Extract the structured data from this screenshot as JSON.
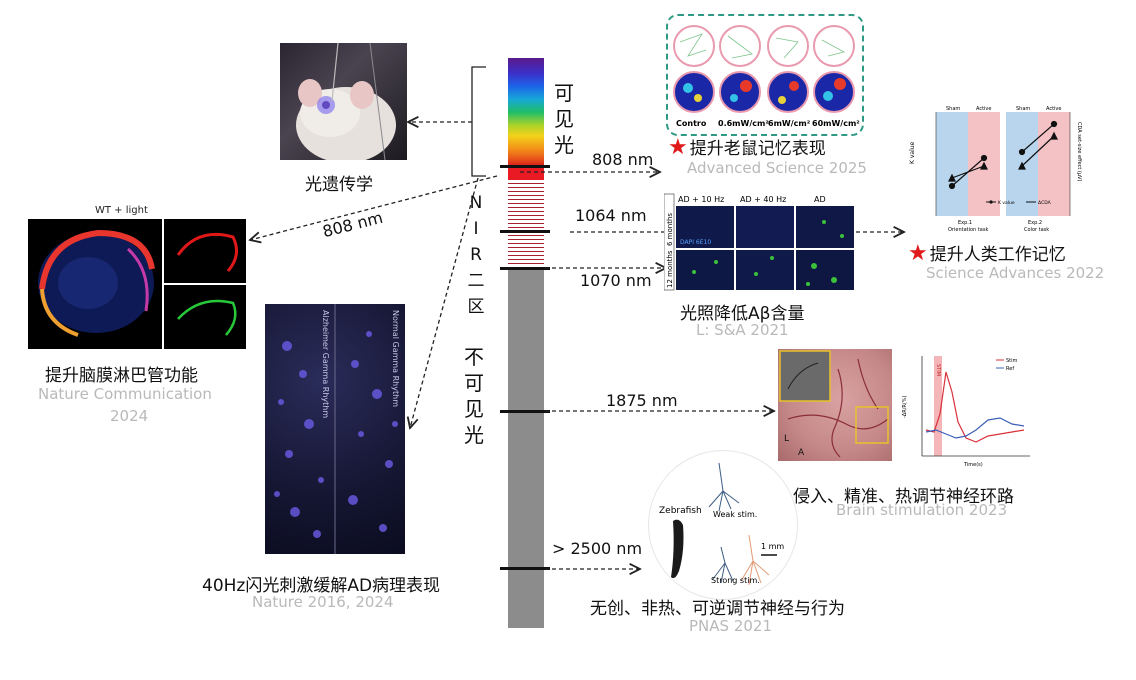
{
  "spectrum": {
    "visible_label": [
      "可",
      "见",
      "光"
    ],
    "nir_label": [
      "N",
      "I",
      "R",
      "二",
      "区"
    ],
    "invisible_label": [
      "不",
      "可",
      "见",
      "光"
    ],
    "wavelengths": {
      "w808_top": "808 nm",
      "w808_diag": "808 nm",
      "w1064": "1064 nm",
      "w1070": "1070 nm",
      "w1875": "1875 nm",
      "w2500": "> 2500 nm"
    }
  },
  "studies": {
    "optogenetics": {
      "caption": "光遗传学"
    },
    "lymph": {
      "panel_title": "WT + light",
      "caption": "提升脑膜淋巴管功能",
      "source": "Nature Communication",
      "year": "2024"
    },
    "gamma40": {
      "caption": "40Hz闪光刺激缓解AD病理表现",
      "source": "Nature 2016, 2024",
      "img_label_left": "Alzheimer Gamma Rhythm",
      "img_label_right": "Normal Gamma Rhythm"
    },
    "mouse_memory": {
      "caption": "提升老鼠记忆表现",
      "source": "Advanced Science 2025",
      "heatmap_labels": [
        "Contro",
        "0.6mW/cm²",
        "6mW/cm²",
        "60mW/cm²"
      ]
    },
    "abeta": {
      "caption": "光照降低Aβ含量",
      "source": "L: S&A 2021",
      "columns": [
        "AD + 10 Hz",
        "AD + 40 Hz",
        "AD"
      ],
      "rows": [
        "6 months",
        "12 months"
      ],
      "stain": "DAPI 6E10"
    },
    "human_memory": {
      "caption": "提升人类工作记忆",
      "source": "Science Advances 2022",
      "band_labels": [
        "Sham",
        "Active",
        "Sham",
        "Active"
      ],
      "y_left_label": "K value",
      "y_right_label": "CDA set-size effect (μV)",
      "legend_k": "K value",
      "legend_cda": "ΔCDA",
      "tasks": [
        "Exp.1",
        "Orientation task",
        "Exp.2",
        "Color task"
      ]
    },
    "neural_circuit": {
      "caption": "侵入、精准、热调节神经环路",
      "source": "Brain stimulation 2023",
      "legend_stim": "Stim",
      "legend_ref": "Ref",
      "stim_tag": "STIM",
      "xlabel": "Time(s)",
      "ylabel": "-ΔR/R(%)"
    },
    "zebrafish": {
      "caption": "无创、非热、可逆调节神经与行为",
      "source": "PNAS 2021",
      "label_fish": "Zebrafish",
      "label_weak": "Weak stim.",
      "label_strong": "Strong stim.",
      "scale": "1 mm"
    }
  },
  "colors": {
    "arrow": "#222222",
    "source_gray": "#b9b9b9",
    "star": "#e0191b",
    "invisible_band": "#8c8c8c"
  }
}
